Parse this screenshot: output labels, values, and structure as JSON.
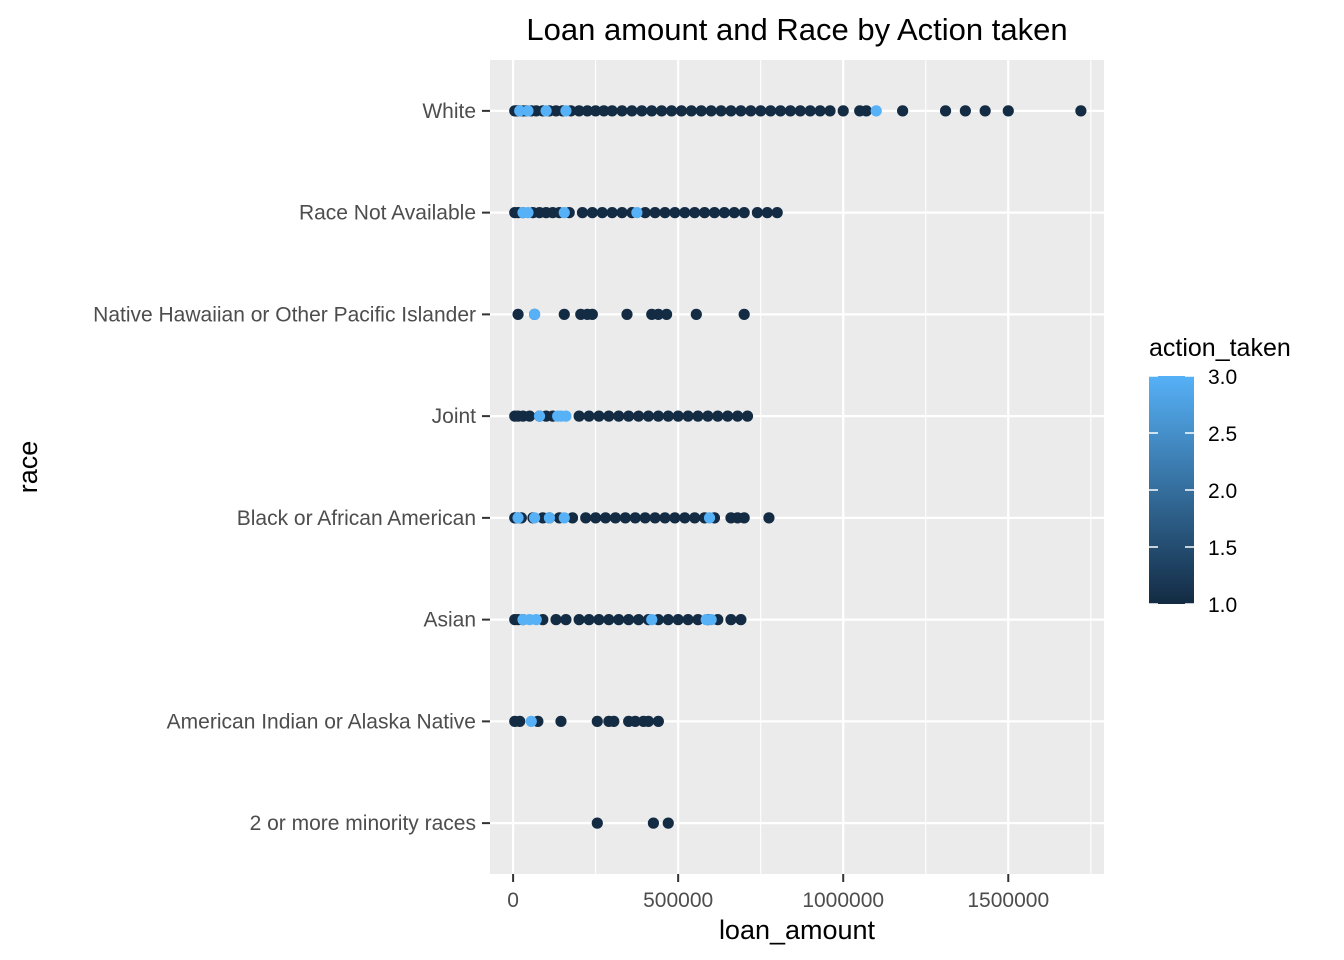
{
  "chart_data": {
    "type": "scatter",
    "title": "Loan amount and Race by Action taken",
    "xlabel": "loan_amount",
    "ylabel": "race",
    "xlim": [
      -70000,
      1790000
    ],
    "xticks": [
      0,
      500000,
      1000000,
      1500000
    ],
    "xtick_labels": [
      "0",
      "500000",
      "1000000",
      "1500000"
    ],
    "categories": [
      "2 or more minority races",
      "American Indian or Alaska Native",
      "Asian",
      "Black or African American",
      "Joint",
      "Native Hawaiian or Other Pacific Islander",
      "Race Not Available",
      "White"
    ],
    "grid": true,
    "legend": {
      "title": "action_taken",
      "placement": "right",
      "min": 1.0,
      "max": 3.0,
      "ticks": [
        1.0,
        1.5,
        2.0,
        2.5,
        3.0
      ],
      "tick_labels": [
        "1.0",
        "1.5",
        "2.0",
        "2.5",
        "3.0"
      ],
      "color_low": "#132b43",
      "color_high": "#56b1f7"
    },
    "series": [
      {
        "category": "White",
        "action_taken": 1,
        "x": [
          5000,
          10000,
          15000,
          20000,
          30000,
          40000,
          55000,
          70000,
          90000,
          110000,
          130000,
          150000,
          175000,
          200000,
          225000,
          250000,
          275000,
          300000,
          330000,
          360000,
          390000,
          420000,
          450000,
          480000,
          510000,
          540000,
          570000,
          600000,
          630000,
          660000,
          690000,
          720000,
          750000,
          780000,
          810000,
          840000,
          870000,
          900000,
          930000,
          960000,
          1000000,
          1050000,
          1070000,
          1180000,
          1310000,
          1370000,
          1430000,
          1500000,
          1720000
        ]
      },
      {
        "category": "White",
        "action_taken": 3,
        "x": [
          20000,
          45000,
          100000,
          160000,
          1100000
        ]
      },
      {
        "category": "Race Not Available",
        "action_taken": 1,
        "x": [
          5000,
          15000,
          30000,
          60000,
          80000,
          100000,
          120000,
          140000,
          170000,
          210000,
          240000,
          270000,
          300000,
          330000,
          360000,
          400000,
          430000,
          460000,
          490000,
          520000,
          550000,
          580000,
          610000,
          640000,
          670000,
          700000,
          740000,
          770000,
          800000
        ]
      },
      {
        "category": "Race Not Available",
        "action_taken": 3,
        "x": [
          30000,
          45000,
          155000,
          375000
        ]
      },
      {
        "category": "Native Hawaiian or Other Pacific Islander",
        "action_taken": 1,
        "x": [
          15000,
          65000,
          155000,
          205000,
          225000,
          240000,
          345000,
          420000,
          440000,
          465000,
          555000,
          700000
        ]
      },
      {
        "category": "Native Hawaiian or Other Pacific Islander",
        "action_taken": 3,
        "x": [
          65000
        ]
      },
      {
        "category": "Joint",
        "action_taken": 1,
        "x": [
          5000,
          15000,
          30000,
          50000,
          80000,
          100000,
          120000,
          200000,
          230000,
          260000,
          290000,
          320000,
          350000,
          380000,
          410000,
          440000,
          470000,
          500000,
          530000,
          560000,
          590000,
          620000,
          650000,
          680000,
          710000
        ]
      },
      {
        "category": "Joint",
        "action_taken": 3,
        "x": [
          80000,
          135000,
          145000,
          160000
        ]
      },
      {
        "category": "Black or African American",
        "action_taken": 1,
        "x": [
          5000,
          15000,
          25000,
          60000,
          90000,
          110000,
          140000,
          180000,
          220000,
          250000,
          280000,
          310000,
          340000,
          370000,
          400000,
          430000,
          460000,
          490000,
          520000,
          550000,
          580000,
          610000,
          660000,
          680000,
          700000,
          775000
        ]
      },
      {
        "category": "Black or African American",
        "action_taken": 3,
        "x": [
          15000,
          65000,
          110000,
          155000,
          595000
        ]
      },
      {
        "category": "Asian",
        "action_taken": 1,
        "x": [
          5000,
          15000,
          30000,
          90000,
          130000,
          160000,
          200000,
          230000,
          260000,
          290000,
          320000,
          350000,
          380000,
          410000,
          440000,
          470000,
          500000,
          530000,
          560000,
          590000,
          620000,
          660000,
          690000
        ]
      },
      {
        "category": "Asian",
        "action_taken": 3,
        "x": [
          30000,
          50000,
          70000,
          420000,
          585000,
          600000
        ]
      },
      {
        "category": "American Indian or Alaska Native",
        "action_taken": 1,
        "x": [
          5000,
          20000,
          75000,
          145000,
          255000,
          290000,
          305000,
          350000,
          370000,
          395000,
          410000,
          440000
        ]
      },
      {
        "category": "American Indian or Alaska Native",
        "action_taken": 3,
        "x": [
          55000
        ]
      },
      {
        "category": "2 or more minority races",
        "action_taken": 1,
        "x": [
          255000,
          425000,
          470000
        ]
      }
    ]
  }
}
